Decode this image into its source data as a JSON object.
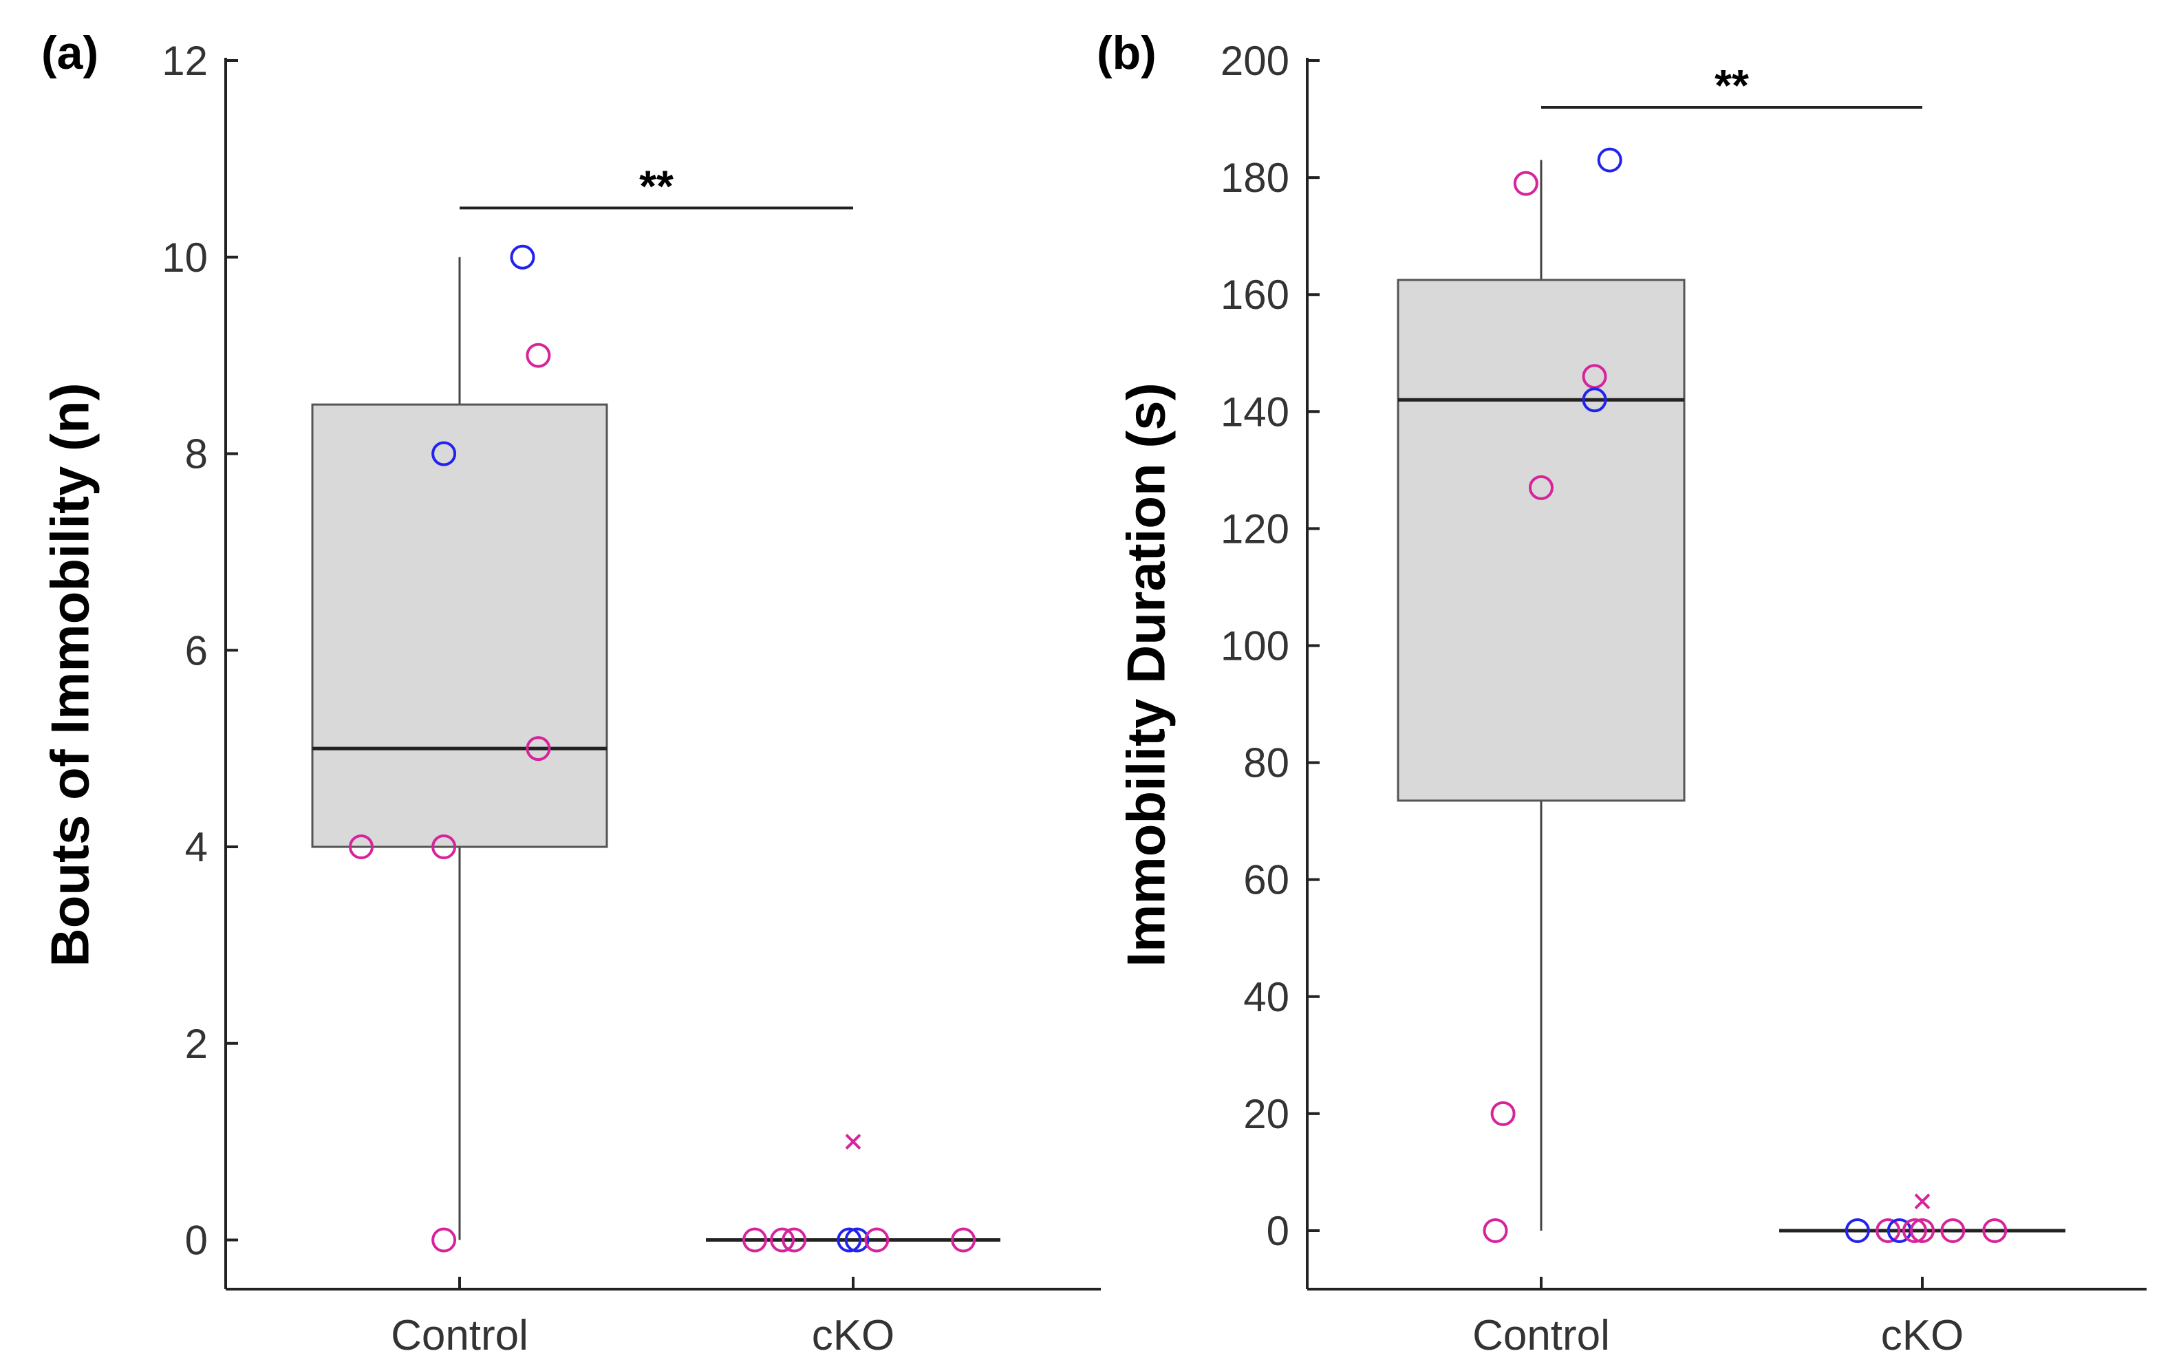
{
  "figure": {
    "colors": {
      "female": "#d6249a",
      "male": "#2222ee",
      "box_fill": "#d9d9d9",
      "box_stroke": "#555555",
      "axis": "#222222"
    }
  },
  "chart_data": [
    {
      "type": "box",
      "panel_label": "(a)",
      "title": "",
      "xlabel": "",
      "ylabel": "Bouts of Immobility (n)",
      "categories": [
        "Control",
        "cKO"
      ],
      "ylim": [
        -0.5,
        12
      ],
      "yticks": [
        0,
        2,
        4,
        6,
        8,
        10,
        12
      ],
      "boxes": [
        {
          "category": "Control",
          "q1": 4,
          "median": 5,
          "q3": 8.5,
          "whisker_low": 0,
          "whisker_high": 10
        },
        {
          "category": "cKO",
          "q1": 0,
          "median": 0,
          "q3": 0,
          "whisker_low": 0,
          "whisker_high": 0
        }
      ],
      "points": [
        {
          "category": "Control",
          "jitter": -0.25,
          "y": 4,
          "group": "female"
        },
        {
          "category": "Control",
          "jitter": -0.04,
          "y": 0,
          "group": "female"
        },
        {
          "category": "Control",
          "jitter": -0.04,
          "y": 4,
          "group": "female"
        },
        {
          "category": "Control",
          "jitter": -0.04,
          "y": 8,
          "group": "male"
        },
        {
          "category": "Control",
          "jitter": 0.16,
          "y": 10,
          "group": "male"
        },
        {
          "category": "Control",
          "jitter": 0.2,
          "y": 9,
          "group": "female"
        },
        {
          "category": "Control",
          "jitter": 0.2,
          "y": 5,
          "group": "female"
        },
        {
          "category": "cKO",
          "jitter": -0.25,
          "y": 0,
          "group": "female"
        },
        {
          "category": "cKO",
          "jitter": -0.18,
          "y": 0,
          "group": "female"
        },
        {
          "category": "cKO",
          "jitter": -0.15,
          "y": 0,
          "group": "female"
        },
        {
          "category": "cKO",
          "jitter": -0.01,
          "y": 0,
          "group": "male"
        },
        {
          "category": "cKO",
          "jitter": 0.01,
          "y": 0,
          "group": "male"
        },
        {
          "category": "cKO",
          "jitter": 0.06,
          "y": 0,
          "group": "female"
        },
        {
          "category": "cKO",
          "jitter": 0.28,
          "y": 0,
          "group": "female"
        }
      ],
      "outliers": [
        {
          "category": "cKO",
          "y": 1
        }
      ],
      "significance": {
        "from": "Control",
        "to": "cKO",
        "y": 10.5,
        "label": "**"
      }
    },
    {
      "type": "box",
      "panel_label": "(b)",
      "title": "",
      "xlabel": "",
      "ylabel": "Immobility Duration (s)",
      "categories": [
        "Control",
        "cKO"
      ],
      "ylim": [
        -10,
        200
      ],
      "yticks": [
        0,
        20,
        40,
        60,
        80,
        100,
        120,
        140,
        160,
        180,
        200
      ],
      "boxes": [
        {
          "category": "Control",
          "q1": 73.5,
          "median": 142,
          "q3": 162.5,
          "whisker_low": 0,
          "whisker_high": 183
        },
        {
          "category": "cKO",
          "q1": 0,
          "median": 0,
          "q3": 0,
          "whisker_low": 0,
          "whisker_high": 0
        }
      ],
      "points": [
        {
          "category": "Control",
          "jitter": -0.12,
          "y": 0,
          "group": "female"
        },
        {
          "category": "Control",
          "jitter": -0.1,
          "y": 20,
          "group": "female"
        },
        {
          "category": "Control",
          "jitter": 0.0,
          "y": 127,
          "group": "female"
        },
        {
          "category": "Control",
          "jitter": -0.04,
          "y": 179,
          "group": "female"
        },
        {
          "category": "Control",
          "jitter": 0.14,
          "y": 146,
          "group": "female"
        },
        {
          "category": "Control",
          "jitter": 0.14,
          "y": 142,
          "group": "male"
        },
        {
          "category": "Control",
          "jitter": 0.18,
          "y": 183,
          "group": "male"
        },
        {
          "category": "cKO",
          "jitter": -0.17,
          "y": 0,
          "group": "male"
        },
        {
          "category": "cKO",
          "jitter": -0.09,
          "y": 0,
          "group": "female"
        },
        {
          "category": "cKO",
          "jitter": -0.06,
          "y": 0,
          "group": "male"
        },
        {
          "category": "cKO",
          "jitter": -0.02,
          "y": 0,
          "group": "female"
        },
        {
          "category": "cKO",
          "jitter": 0.0,
          "y": 0,
          "group": "female"
        },
        {
          "category": "cKO",
          "jitter": 0.08,
          "y": 0,
          "group": "female"
        },
        {
          "category": "cKO",
          "jitter": 0.19,
          "y": 0,
          "group": "female"
        }
      ],
      "outliers": [
        {
          "category": "cKO",
          "y": 5
        }
      ],
      "significance": {
        "from": "Control",
        "to": "cKO",
        "y": 192,
        "label": "**"
      }
    }
  ]
}
